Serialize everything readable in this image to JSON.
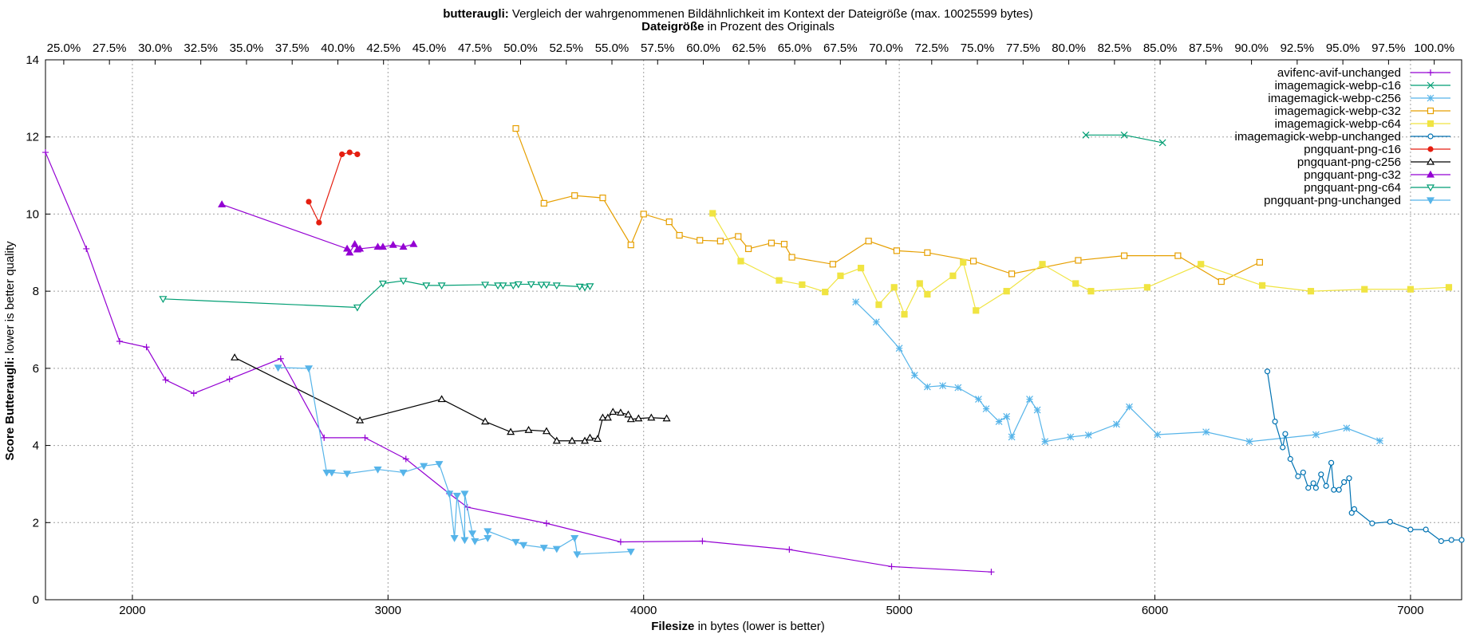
{
  "chart_data": {
    "type": "line",
    "title_bold": "butteraugli:",
    "title_rest": " Vergleich der wahrgenommenen Bildähnlichkeit im Kontext der Dateigröße (max. 10025599 bytes)",
    "x2label_bold": "Dateigröße",
    "x2label_rest": " in Prozent des Originals",
    "xlabel_bold": "Filesize",
    "xlabel_rest": " in bytes (lower is better)",
    "ylabel_bold": "Score Butteraugli:",
    "ylabel_rest": " lower is better quality",
    "xlim": [
      1660,
      7200
    ],
    "ylim": [
      0,
      14
    ],
    "x_ticks": [
      "2000",
      "3000",
      "4000",
      "5000",
      "6000",
      "7000"
    ],
    "x_tick_values": [
      2000,
      3000,
      4000,
      5000,
      6000,
      7000
    ],
    "y_ticks": [
      "0",
      "2",
      "4",
      "6",
      "8",
      "10",
      "12",
      "14"
    ],
    "y_tick_values": [
      0,
      2,
      4,
      6,
      8,
      10,
      12,
      14
    ],
    "x2_ticks": [
      "25.0%",
      "27.5%",
      "30.0%",
      "32.5%",
      "35.0%",
      "37.5%",
      "40.0%",
      "42.5%",
      "45.0%",
      "47.5%",
      "50.0%",
      "52.5%",
      "55.0%",
      "57.5%",
      "60.0%",
      "62.5%",
      "65.0%",
      "67.5%",
      "70.0%",
      "72.5%",
      "75.0%",
      "77.5%",
      "80.0%",
      "82.5%",
      "85.0%",
      "87.5%",
      "90.0%",
      "92.5%",
      "95.0%",
      "97.5%",
      "100.0%"
    ],
    "x2_range": [
      24.0,
      101.5
    ],
    "grid": true,
    "legend_position": "top-right",
    "series": [
      {
        "name": "avifenc-avif-unchanged",
        "color": "#9400d3",
        "marker": "plus",
        "points": [
          [
            1660,
            11.6
          ],
          [
            1820,
            9.1
          ],
          [
            1950,
            6.7
          ],
          [
            2055,
            6.55
          ],
          [
            2130,
            5.7
          ],
          [
            2240,
            5.35
          ],
          [
            2380,
            5.72
          ],
          [
            2580,
            6.25
          ],
          [
            2750,
            4.2
          ],
          [
            2910,
            4.2
          ],
          [
            3070,
            3.65
          ],
          [
            3240,
            2.75
          ],
          [
            3310,
            2.4
          ],
          [
            3620,
            1.98
          ],
          [
            3910,
            1.5
          ],
          [
            4230,
            1.52
          ],
          [
            4570,
            1.3
          ],
          [
            4970,
            0.86
          ],
          [
            5360,
            0.72
          ]
        ]
      },
      {
        "name": "imagemagick-webp-c16",
        "color": "#009e73",
        "marker": "x",
        "points": [
          [
            5730,
            12.05
          ],
          [
            5880,
            12.05
          ],
          [
            6030,
            11.85
          ]
        ]
      },
      {
        "name": "imagemagick-webp-c256",
        "color": "#56b4e9",
        "marker": "star",
        "points": [
          [
            4830,
            7.72
          ],
          [
            4910,
            7.2
          ],
          [
            5000,
            6.52
          ],
          [
            5060,
            5.82
          ],
          [
            5110,
            5.52
          ],
          [
            5170,
            5.55
          ],
          [
            5230,
            5.5
          ],
          [
            5310,
            5.2
          ],
          [
            5340,
            4.95
          ],
          [
            5390,
            4.62
          ],
          [
            5420,
            4.75
          ],
          [
            5440,
            4.22
          ],
          [
            5510,
            5.2
          ],
          [
            5540,
            4.92
          ],
          [
            5570,
            4.1
          ],
          [
            5670,
            4.22
          ],
          [
            5740,
            4.27
          ],
          [
            5850,
            4.55
          ],
          [
            5900,
            5.0
          ],
          [
            6010,
            4.28
          ],
          [
            6200,
            4.35
          ],
          [
            6370,
            4.1
          ],
          [
            6630,
            4.28
          ],
          [
            6750,
            4.45
          ],
          [
            6880,
            4.12
          ]
        ]
      },
      {
        "name": "imagemagick-webp-c32",
        "color": "#e69f00",
        "marker": "square",
        "points": [
          [
            3500,
            12.22
          ],
          [
            3610,
            10.28
          ],
          [
            3730,
            10.48
          ],
          [
            3840,
            10.42
          ],
          [
            3950,
            9.2
          ],
          [
            4000,
            10.0
          ],
          [
            4100,
            9.8
          ],
          [
            4140,
            9.45
          ],
          [
            4220,
            9.32
          ],
          [
            4300,
            9.3
          ],
          [
            4370,
            9.42
          ],
          [
            4410,
            9.1
          ],
          [
            4500,
            9.25
          ],
          [
            4550,
            9.22
          ],
          [
            4580,
            8.88
          ],
          [
            4740,
            8.7
          ],
          [
            4880,
            9.3
          ],
          [
            4990,
            9.05
          ],
          [
            5110,
            9.0
          ],
          [
            5290,
            8.78
          ],
          [
            5440,
            8.45
          ],
          [
            5700,
            8.8
          ],
          [
            5880,
            8.92
          ],
          [
            6090,
            8.92
          ],
          [
            6260,
            8.25
          ],
          [
            6410,
            8.75
          ]
        ]
      },
      {
        "name": "imagemagick-webp-c64",
        "color": "#f0e442",
        "marker": "square-filled",
        "points": [
          [
            4270,
            10.02
          ],
          [
            4380,
            8.78
          ],
          [
            4530,
            8.28
          ],
          [
            4620,
            8.17
          ],
          [
            4710,
            7.98
          ],
          [
            4770,
            8.4
          ],
          [
            4850,
            8.6
          ],
          [
            4920,
            7.65
          ],
          [
            4980,
            8.1
          ],
          [
            5020,
            7.4
          ],
          [
            5080,
            8.2
          ],
          [
            5110,
            7.92
          ],
          [
            5210,
            8.4
          ],
          [
            5250,
            8.75
          ],
          [
            5300,
            7.5
          ],
          [
            5420,
            8.0
          ],
          [
            5560,
            8.7
          ],
          [
            5690,
            8.2
          ],
          [
            5750,
            8.0
          ],
          [
            5970,
            8.1
          ],
          [
            6180,
            8.7
          ],
          [
            6420,
            8.15
          ],
          [
            6610,
            8.0
          ],
          [
            6820,
            8.05
          ],
          [
            7000,
            8.05
          ],
          [
            7150,
            8.1
          ]
        ]
      },
      {
        "name": "imagemagick-webp-unchanged",
        "color": "#0072b2",
        "marker": "circle",
        "points": [
          [
            6440,
            5.92
          ],
          [
            6470,
            4.62
          ],
          [
            6500,
            3.95
          ],
          [
            6510,
            4.3
          ],
          [
            6530,
            3.65
          ],
          [
            6560,
            3.2
          ],
          [
            6580,
            3.3
          ],
          [
            6600,
            2.9
          ],
          [
            6620,
            3.02
          ],
          [
            6630,
            2.9
          ],
          [
            6650,
            3.25
          ],
          [
            6670,
            2.95
          ],
          [
            6690,
            3.55
          ],
          [
            6700,
            2.85
          ],
          [
            6720,
            2.85
          ],
          [
            6740,
            3.05
          ],
          [
            6760,
            3.15
          ],
          [
            6770,
            2.25
          ],
          [
            6780,
            2.35
          ],
          [
            6850,
            1.98
          ],
          [
            6920,
            2.02
          ],
          [
            7000,
            1.82
          ],
          [
            7060,
            1.82
          ],
          [
            7120,
            1.52
          ],
          [
            7160,
            1.55
          ],
          [
            7200,
            1.55
          ]
        ]
      },
      {
        "name": "pngquant-png-c16",
        "color": "#e51e10",
        "marker": "circle-filled",
        "points": [
          [
            2690,
            10.32
          ],
          [
            2730,
            9.78
          ],
          [
            2820,
            11.55
          ],
          [
            2850,
            11.6
          ],
          [
            2880,
            11.55
          ]
        ]
      },
      {
        "name": "pngquant-png-c256",
        "color": "#000000",
        "marker": "triangle",
        "points": [
          [
            2400,
            6.28
          ],
          [
            2890,
            4.65
          ],
          [
            3210,
            5.2
          ],
          [
            3380,
            4.62
          ],
          [
            3480,
            4.35
          ],
          [
            3550,
            4.4
          ],
          [
            3620,
            4.37
          ],
          [
            3660,
            4.12
          ],
          [
            3720,
            4.12
          ],
          [
            3770,
            4.12
          ],
          [
            3790,
            4.2
          ],
          [
            3820,
            4.17
          ],
          [
            3840,
            4.72
          ],
          [
            3860,
            4.72
          ],
          [
            3880,
            4.87
          ],
          [
            3910,
            4.85
          ],
          [
            3940,
            4.8
          ],
          [
            3950,
            4.68
          ],
          [
            3980,
            4.7
          ],
          [
            4030,
            4.72
          ],
          [
            4090,
            4.7
          ]
        ]
      },
      {
        "name": "pngquant-png-c32",
        "color": "#9400d3",
        "marker": "triangle-filled",
        "points": [
          [
            2350,
            10.25
          ],
          [
            2840,
            9.1
          ],
          [
            2850,
            9.0
          ],
          [
            2870,
            9.22
          ],
          [
            2880,
            9.08
          ],
          [
            2890,
            9.1
          ],
          [
            2960,
            9.15
          ],
          [
            2980,
            9.15
          ],
          [
            3020,
            9.2
          ],
          [
            3060,
            9.15
          ],
          [
            3100,
            9.22
          ]
        ]
      },
      {
        "name": "pngquant-png-c64",
        "color": "#009e73",
        "marker": "triangle-down",
        "points": [
          [
            2120,
            7.8
          ],
          [
            2880,
            7.58
          ],
          [
            2980,
            8.2
          ],
          [
            3060,
            8.27
          ],
          [
            3150,
            8.15
          ],
          [
            3210,
            8.15
          ],
          [
            3380,
            8.17
          ],
          [
            3430,
            8.15
          ],
          [
            3450,
            8.15
          ],
          [
            3490,
            8.15
          ],
          [
            3510,
            8.18
          ],
          [
            3560,
            8.18
          ],
          [
            3600,
            8.17
          ],
          [
            3620,
            8.17
          ],
          [
            3660,
            8.15
          ],
          [
            3750,
            8.12
          ],
          [
            3770,
            8.1
          ],
          [
            3790,
            8.13
          ]
        ]
      },
      {
        "name": "pngquant-png-unchanged",
        "color": "#56b4e9",
        "marker": "triangle-down-filled",
        "points": [
          [
            2570,
            6.02
          ],
          [
            2690,
            6.0
          ],
          [
            2760,
            3.3
          ],
          [
            2780,
            3.3
          ],
          [
            2840,
            3.27
          ],
          [
            2960,
            3.38
          ],
          [
            3060,
            3.3
          ],
          [
            3140,
            3.47
          ],
          [
            3200,
            3.52
          ],
          [
            3240,
            2.75
          ],
          [
            3260,
            1.6
          ],
          [
            3270,
            2.7
          ],
          [
            3300,
            1.55
          ],
          [
            3300,
            2.75
          ],
          [
            3330,
            1.72
          ],
          [
            3340,
            1.52
          ],
          [
            3390,
            1.6
          ],
          [
            3390,
            1.78
          ],
          [
            3500,
            1.5
          ],
          [
            3530,
            1.42
          ],
          [
            3610,
            1.35
          ],
          [
            3660,
            1.32
          ],
          [
            3730,
            1.6
          ],
          [
            3740,
            1.18
          ],
          [
            3950,
            1.25
          ]
        ]
      }
    ]
  }
}
